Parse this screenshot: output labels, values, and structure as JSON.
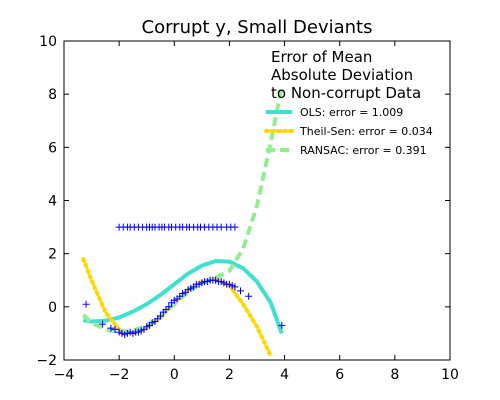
{
  "chart_data": {
    "type": "scatter",
    "title": "Corrupt y, Small Deviants",
    "xlabel": "",
    "ylabel": "",
    "xlim": [
      -4,
      10
    ],
    "ylim": [
      -2,
      10
    ],
    "xticks": [
      -4,
      -2,
      0,
      2,
      4,
      6,
      8,
      10
    ],
    "yticks": [
      -2,
      0,
      2,
      4,
      6,
      8,
      10
    ],
    "xtick_labels": [
      "−4",
      "−2",
      "0",
      "2",
      "4",
      "6",
      "8",
      "10"
    ],
    "ytick_labels": [
      "−2",
      "0",
      "2",
      "4",
      "6",
      "8",
      "10"
    ],
    "grid": false,
    "legend_position": "upper-right",
    "legend_title": "Error of Mean\nAbsolute Deviation\nto Non-corrupt Data",
    "marker_color": "#0000ff",
    "scatter": {
      "x": [
        -3.2,
        -2.6,
        -2.3,
        -2.15,
        -2.0,
        -1.9,
        -1.8,
        -1.7,
        -1.6,
        -1.5,
        -1.4,
        -1.3,
        -1.2,
        -1.1,
        -1.0,
        -0.9,
        -0.8,
        -0.7,
        -0.6,
        -0.5,
        -0.4,
        -0.3,
        -0.2,
        -0.1,
        0.0,
        0.1,
        0.2,
        0.3,
        0.4,
        0.5,
        0.6,
        0.7,
        0.8,
        0.9,
        1.0,
        1.1,
        1.2,
        1.3,
        1.4,
        1.5,
        1.6,
        1.7,
        1.8,
        1.9,
        2.0,
        2.1,
        2.2,
        2.4,
        2.7,
        3.9,
        -2.0,
        -1.85,
        -1.7,
        -1.6,
        -1.45,
        -1.3,
        -1.15,
        -1.0,
        -0.9,
        -0.8,
        -0.7,
        -0.55,
        -0.45,
        -0.35,
        -0.2,
        -0.1,
        0.05,
        0.2,
        0.3,
        0.45,
        0.55,
        0.7,
        0.85,
        0.95,
        1.1,
        1.25,
        1.4,
        1.55,
        1.7,
        1.9,
        2.05,
        2.2
      ],
      "y": [
        0.1,
        -0.65,
        -0.8,
        -0.85,
        -0.95,
        -1.0,
        -1.05,
        -1.0,
        -0.95,
        -1.0,
        -0.95,
        -0.95,
        -0.9,
        -0.85,
        -0.75,
        -0.7,
        -0.6,
        -0.55,
        -0.45,
        -0.35,
        -0.2,
        -0.1,
        0.0,
        0.15,
        0.25,
        0.3,
        0.4,
        0.5,
        0.55,
        0.65,
        0.7,
        0.75,
        0.85,
        0.85,
        0.9,
        0.95,
        0.95,
        1.0,
        1.0,
        1.0,
        0.95,
        0.95,
        0.9,
        0.85,
        0.85,
        0.8,
        0.75,
        0.6,
        0.4,
        -0.7,
        3.0,
        3.0,
        3.0,
        3.0,
        3.0,
        3.0,
        3.0,
        3.0,
        3.0,
        3.0,
        3.0,
        3.0,
        3.0,
        3.0,
        3.0,
        3.0,
        3.0,
        3.0,
        3.0,
        3.0,
        3.0,
        3.0,
        3.0,
        3.0,
        3.0,
        3.0,
        3.0,
        3.0,
        3.0,
        3.0,
        3.0,
        3.0
      ]
    },
    "series": [
      {
        "name": "OLS: error = 1.009",
        "color": "#40e0d0",
        "style": "solid",
        "x": [
          -3.3,
          -3.0,
          -2.5,
          -2.0,
          -1.5,
          -1.0,
          -0.5,
          0.0,
          0.5,
          1.0,
          1.5,
          2.0,
          2.5,
          3.0,
          3.5,
          3.9
        ],
        "y": [
          -0.5,
          -0.55,
          -0.52,
          -0.4,
          -0.18,
          0.1,
          0.45,
          0.85,
          1.25,
          1.55,
          1.72,
          1.7,
          1.45,
          0.95,
          0.15,
          -1.0
        ]
      },
      {
        "name": "Theil-Sen: error = 0.034",
        "color": "#ffd700",
        "style": "dotted",
        "x": [
          -3.3,
          -3.0,
          -2.5,
          -2.0,
          -1.5,
          -1.0,
          -0.5,
          0.0,
          0.5,
          1.0,
          1.5,
          2.0,
          2.5,
          3.0,
          3.5
        ],
        "y": [
          1.8,
          1.0,
          -0.2,
          -0.85,
          -1.0,
          -0.8,
          -0.4,
          0.15,
          0.6,
          0.95,
          1.05,
          0.8,
          0.1,
          -0.75,
          -1.85
        ]
      },
      {
        "name": "RANSAC: error = 0.391",
        "color": "#90ee90",
        "style": "dashed",
        "x": [
          -3.3,
          -3.0,
          -2.5,
          -2.0,
          -1.5,
          -1.0,
          -0.5,
          0.0,
          0.5,
          1.0,
          1.5,
          2.0,
          2.5,
          3.0,
          3.5,
          3.9
        ],
        "y": [
          -0.3,
          -0.6,
          -0.85,
          -0.95,
          -0.9,
          -0.7,
          -0.35,
          0.1,
          0.55,
          0.9,
          1.1,
          1.35,
          2.2,
          3.8,
          6.2,
          8.3
        ]
      }
    ]
  }
}
